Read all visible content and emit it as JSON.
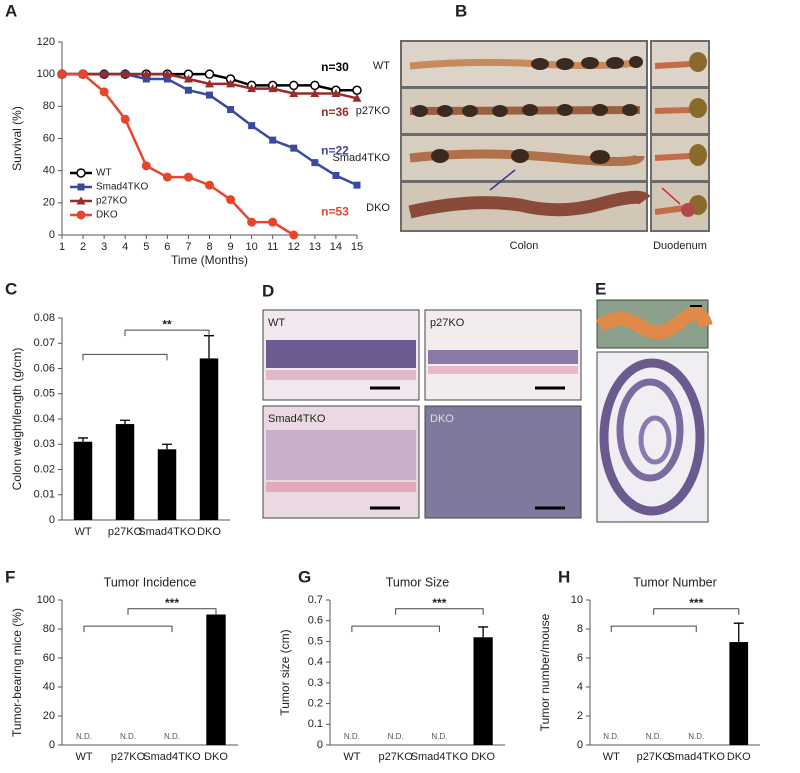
{
  "chart_data": [
    {
      "panel": "A",
      "type": "line",
      "x_label": "Time (Months)",
      "y_label": "Survival (%)",
      "x": [
        1,
        2,
        3,
        4,
        5,
        6,
        7,
        8,
        9,
        10,
        11,
        12,
        13,
        14,
        15
      ],
      "xlim": [
        1,
        15
      ],
      "xticks": [
        1,
        2,
        3,
        4,
        5,
        6,
        7,
        8,
        9,
        10,
        11,
        12,
        13,
        14,
        15
      ],
      "ylim": [
        0,
        120
      ],
      "yticks": [
        0,
        20,
        40,
        60,
        80,
        100,
        120
      ],
      "legend": "lower left",
      "series": [
        {
          "name": "WT",
          "color": "#000000",
          "marker": "open-circle",
          "values": [
            100,
            100,
            100,
            100,
            100,
            100,
            100,
            100,
            97,
            93,
            93,
            93,
            93,
            90,
            90
          ]
        },
        {
          "name": "Smad4TKO",
          "color": "#3a4aa0",
          "marker": "square",
          "values": [
            100,
            100,
            100,
            100,
            97,
            97,
            90,
            87,
            78,
            68,
            59,
            54,
            45,
            37,
            31
          ]
        },
        {
          "name": "p27KO",
          "color": "#9b2a2a",
          "marker": "triangle",
          "values": [
            100,
            100,
            100,
            100,
            100,
            100,
            97,
            94,
            94,
            91,
            91,
            88,
            88,
            88,
            85
          ]
        },
        {
          "name": "DKO",
          "color": "#e8452c",
          "marker": "circle",
          "values": [
            100,
            100,
            89,
            72,
            43,
            36,
            36,
            31,
            22,
            8,
            8,
            0,
            null,
            null,
            null
          ]
        }
      ],
      "annotations": [
        {
          "text": "n=30",
          "color": "#000000"
        },
        {
          "text": "n=36",
          "color": "#9b2a2a"
        },
        {
          "text": "n=22",
          "color": "#3a4aa0"
        },
        {
          "text": "n=53",
          "color": "#e8452c"
        }
      ]
    },
    {
      "panel": "C",
      "type": "bar",
      "y_label": "Colon weight/length (g/cm)",
      "color": "#000000",
      "categories": [
        "WT",
        "p27KO",
        "Smad4TKO",
        "DKO"
      ],
      "values": [
        0.031,
        0.038,
        0.028,
        0.064
      ],
      "errors": [
        0.0015,
        0.0015,
        0.002,
        0.009
      ],
      "ylim": [
        0,
        0.08
      ],
      "yticks": [
        0,
        0.01,
        0.02,
        0.03,
        0.04,
        0.05,
        0.06,
        0.07,
        0.08
      ],
      "significance": "**"
    },
    {
      "panel": "F",
      "type": "bar",
      "title": "Tumor Incidence",
      "y_label": "Tumor-bearing mice (%)",
      "color": "#000000",
      "categories": [
        "WT",
        "p27KO",
        "Smad4TKO",
        "DKO"
      ],
      "values": [
        null,
        null,
        null,
        90
      ],
      "value_labels": [
        "N.D.",
        "N.D.",
        "N.D.",
        null
      ],
      "ylim": [
        0,
        100
      ],
      "yticks": [
        0,
        20,
        40,
        60,
        80,
        100
      ],
      "significance": "***"
    },
    {
      "panel": "G",
      "type": "bar",
      "title": "Tumor Size",
      "y_label": "Tumor size (cm)",
      "color": "#000000",
      "categories": [
        "WT",
        "p27KO",
        "Smad4TKO",
        "DKO"
      ],
      "values": [
        null,
        null,
        null,
        0.52
      ],
      "errors": [
        null,
        null,
        null,
        0.05
      ],
      "value_labels": [
        "N.D.",
        "N.D.",
        "N.D.",
        null
      ],
      "ylim": [
        0,
        0.7
      ],
      "yticks": [
        0,
        0.1,
        0.2,
        0.3,
        0.4,
        0.5,
        0.6,
        0.7
      ],
      "significance": "***"
    },
    {
      "panel": "H",
      "type": "bar",
      "title": "Tumor Number",
      "y_label": "Tumor number/mouse",
      "color": "#000000",
      "categories": [
        "WT",
        "p27KO",
        "Smad4TKO",
        "DKO"
      ],
      "values": [
        null,
        null,
        null,
        7.1
      ],
      "errors": [
        null,
        null,
        null,
        1.3
      ],
      "value_labels": [
        "N.D.",
        "N.D.",
        "N.D.",
        null
      ],
      "ylim": [
        0,
        10
      ],
      "yticks": [
        0,
        2,
        4,
        6,
        8,
        10
      ],
      "significance": "***"
    }
  ],
  "photo_panels": {
    "B": {
      "panel": "B",
      "rows": [
        "WT",
        "p27KO",
        "Smad4TKO",
        "DKO"
      ],
      "columns": [
        "Colon",
        "Duodenum"
      ]
    },
    "D": {
      "panel": "D",
      "labels": [
        "WT",
        "p27KO",
        "Smad4TKO",
        "DKO"
      ]
    },
    "E": {
      "panel": "E"
    }
  }
}
